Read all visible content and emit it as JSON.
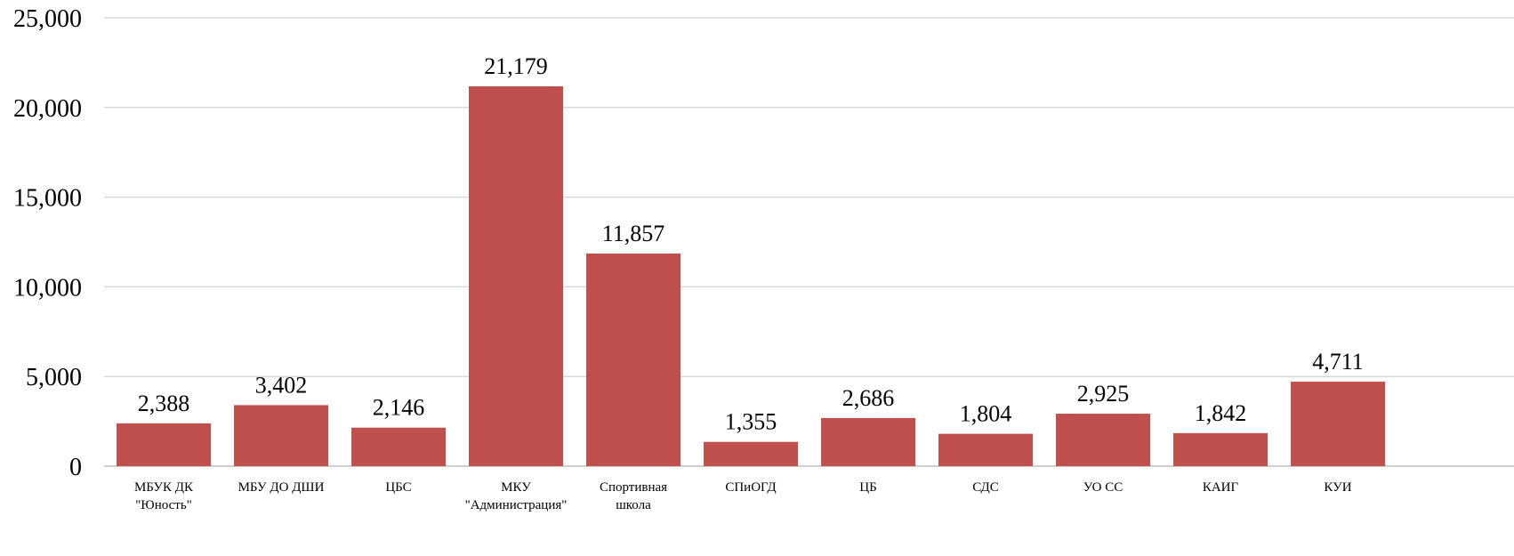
{
  "chart_data": {
    "type": "bar",
    "categories": [
      [
        "МБУК ДК",
        "\"Юность\""
      ],
      [
        "МБУ ДО ДШИ"
      ],
      [
        "ЦБС"
      ],
      [
        "МКУ",
        "\"Администрация\""
      ],
      [
        "Спортивная",
        "школа"
      ],
      [
        "СПиОГД"
      ],
      [
        "ЦБ"
      ],
      [
        "СДС"
      ],
      [
        "УО СС"
      ],
      [
        "КАИГ"
      ],
      [
        "КУИ"
      ]
    ],
    "values": [
      2388,
      3402,
      2146,
      21179,
      11857,
      1355,
      2686,
      1804,
      2925,
      1842,
      4711
    ],
    "value_labels": [
      "2,388",
      "3,402",
      "2,146",
      "21,179",
      "11,857",
      "1,355",
      "2,686",
      "1,804",
      "2,925",
      "1,842",
      "4,711"
    ],
    "yticks": [
      0,
      5000,
      10000,
      15000,
      20000,
      25000
    ],
    "ytick_labels": [
      "0",
      "5,000",
      "10,000",
      "15,000",
      "20,000",
      "25,000"
    ],
    "ylim": [
      0,
      25000
    ],
    "grid": true,
    "legend": "none",
    "bar_color": "#c0504d"
  }
}
